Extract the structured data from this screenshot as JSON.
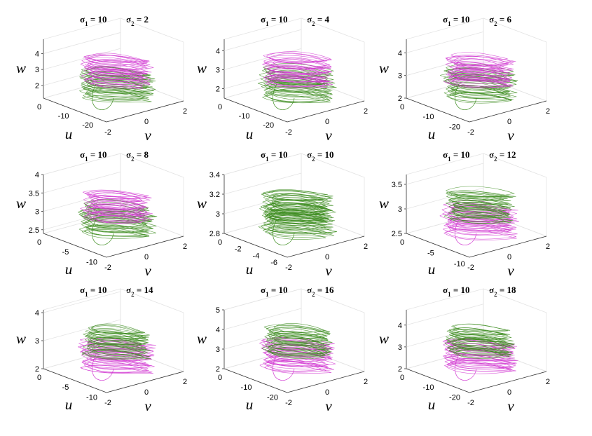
{
  "figure": {
    "layout": "3x3 grid of 3D phase portraits",
    "colors": {
      "first_trajectory": "#3c8c1e",
      "second_trajectory": "#d23cd2"
    }
  },
  "chart_data": [
    {
      "type": "line3d",
      "title": {
        "s1": "σ",
        "s1sub": "1",
        "s1val": " = 10",
        "s2": "σ",
        "s2sub": "2",
        "s2val": " = 2"
      },
      "xlabel": "u",
      "ylabel": "v",
      "zlabel": "w",
      "u_ticks": [
        "0",
        "-10",
        "-20"
      ],
      "v_ticks": [
        "-2",
        "0",
        "2"
      ],
      "w_ticks": [
        "2",
        "3",
        "4"
      ],
      "u_range": [
        -26,
        0
      ],
      "v_range": [
        -2,
        2
      ],
      "w_range": [
        1.2,
        4.9
      ],
      "top_color": "magenta"
    },
    {
      "type": "line3d",
      "title": {
        "s1": "σ",
        "s1sub": "1",
        "s1val": " = 10",
        "s2": "σ",
        "s2sub": "2",
        "s2val": " = 4"
      },
      "xlabel": "u",
      "ylabel": "v",
      "zlabel": "w",
      "u_ticks": [
        "0",
        "-10",
        "-20"
      ],
      "v_ticks": [
        "-2",
        "0",
        "2"
      ],
      "w_ticks": [
        "2",
        "3",
        "4"
      ],
      "u_range": [
        -26,
        0
      ],
      "v_range": [
        -2,
        2
      ],
      "w_range": [
        1.5,
        4.6
      ],
      "top_color": "magenta"
    },
    {
      "type": "line3d",
      "title": {
        "s1": "σ",
        "s1sub": "1",
        "s1val": " = 10",
        "s2": "σ",
        "s2sub": "2",
        "s2val": " = 6"
      },
      "xlabel": "u",
      "ylabel": "v",
      "zlabel": "w",
      "u_ticks": [
        "0",
        "-10",
        "-20"
      ],
      "v_ticks": [
        "-2",
        "0",
        "2"
      ],
      "w_ticks": [
        "2",
        "3",
        "4"
      ],
      "u_range": [
        -24,
        0
      ],
      "v_range": [
        -2,
        2
      ],
      "w_range": [
        2,
        4.6
      ],
      "top_color": "magenta"
    },
    {
      "type": "line3d",
      "title": {
        "s1": "σ",
        "s1sub": "1",
        "s1val": " = 10",
        "s2": "σ",
        "s2sub": "2",
        "s2val": " = 8"
      },
      "xlabel": "u",
      "ylabel": "v",
      "zlabel": "w",
      "u_ticks": [
        "0",
        "-5",
        "-10"
      ],
      "v_ticks": [
        "-2",
        "0",
        "2"
      ],
      "w_ticks": [
        "2.5",
        "3",
        "3.5",
        "4"
      ],
      "u_range": [
        -12,
        0
      ],
      "v_range": [
        -2,
        2
      ],
      "w_range": [
        2.4,
        4
      ],
      "top_color": "magenta"
    },
    {
      "type": "line3d",
      "title": {
        "s1": "σ",
        "s1sub": "1",
        "s1val": " = 10",
        "s2": "σ",
        "s2sub": "2",
        "s2val": " = 10"
      },
      "xlabel": "u",
      "ylabel": "v",
      "zlabel": "w",
      "u_ticks": [
        "0",
        "-2",
        "-4",
        "-6"
      ],
      "v_ticks": [
        "-2",
        "0",
        "2"
      ],
      "w_ticks": [
        "2.8",
        "3",
        "3.2",
        "3.4"
      ],
      "u_range": [
        -7,
        0
      ],
      "v_range": [
        -2,
        2
      ],
      "w_range": [
        2.8,
        3.4
      ],
      "top_color": "mixed"
    },
    {
      "type": "line3d",
      "title": {
        "s1": "σ",
        "s1sub": "1",
        "s1val": " = 10",
        "s2": "σ",
        "s2sub": "2",
        "s2val": " = 12"
      },
      "xlabel": "u",
      "ylabel": "v",
      "zlabel": "w",
      "u_ticks": [
        "0",
        "-5",
        "-10"
      ],
      "v_ticks": [
        "-2",
        "0",
        "2"
      ],
      "w_ticks": [
        "2.5",
        "3",
        "3.5"
      ],
      "u_range": [
        -11,
        0
      ],
      "v_range": [
        -2,
        2
      ],
      "w_range": [
        2.5,
        3.7
      ],
      "top_color": "green"
    },
    {
      "type": "line3d",
      "title": {
        "s1": "σ",
        "s1sub": "1",
        "s1val": " = 10",
        "s2": "σ",
        "s2sub": "2",
        "s2val": " = 14"
      },
      "xlabel": "u",
      "ylabel": "v",
      "zlabel": "w",
      "u_ticks": [
        "0",
        "-5",
        "-10"
      ],
      "v_ticks": [
        "-2",
        "0",
        "2"
      ],
      "w_ticks": [
        "2",
        "3",
        "4"
      ],
      "u_range": [
        -12,
        0
      ],
      "v_range": [
        -2,
        2
      ],
      "w_range": [
        2,
        4.1
      ],
      "top_color": "green"
    },
    {
      "type": "line3d",
      "title": {
        "s1": "σ",
        "s1sub": "1",
        "s1val": " = 10",
        "s2": "σ",
        "s2sub": "2",
        "s2val": " = 16"
      },
      "xlabel": "u",
      "ylabel": "v",
      "zlabel": "w",
      "u_ticks": [
        "0",
        "-10",
        "-20"
      ],
      "v_ticks": [
        "-2",
        "0",
        "2"
      ],
      "w_ticks": [
        "2",
        "3",
        "4",
        "5"
      ],
      "u_range": [
        -24,
        0
      ],
      "v_range": [
        -2,
        2
      ],
      "w_range": [
        2,
        5
      ],
      "top_color": "green"
    },
    {
      "type": "line3d",
      "title": {
        "s1": "σ",
        "s1sub": "1",
        "s1val": " = 10",
        "s2": "σ",
        "s2sub": "2",
        "s2val": " = 18"
      },
      "xlabel": "u",
      "ylabel": "v",
      "zlabel": "w",
      "u_ticks": [
        "0",
        "-10",
        "-20"
      ],
      "v_ticks": [
        "-2",
        "0",
        "2"
      ],
      "w_ticks": [
        "2",
        "3",
        "4"
      ],
      "u_range": [
        -24,
        0
      ],
      "v_range": [
        -2,
        2
      ],
      "w_range": [
        2,
        4.7
      ],
      "top_color": "green"
    }
  ]
}
